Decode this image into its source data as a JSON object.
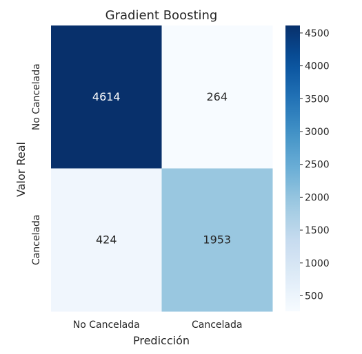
{
  "chart_data": {
    "type": "heatmap",
    "title": "Gradient Boosting",
    "xlabel": "Predicción",
    "ylabel": "Valor Real",
    "x_categories": [
      "No Cancelada",
      "Cancelada"
    ],
    "y_categories": [
      "No Cancelada",
      "Cancelada"
    ],
    "values": [
      [
        4614,
        264
      ],
      [
        424,
        1953
      ]
    ],
    "colormap": "Blues",
    "colorbar": {
      "min": 264,
      "max": 4614,
      "ticks": [
        500,
        1000,
        1500,
        2000,
        2500,
        3000,
        3500,
        4000,
        4500
      ]
    },
    "grid": false
  }
}
